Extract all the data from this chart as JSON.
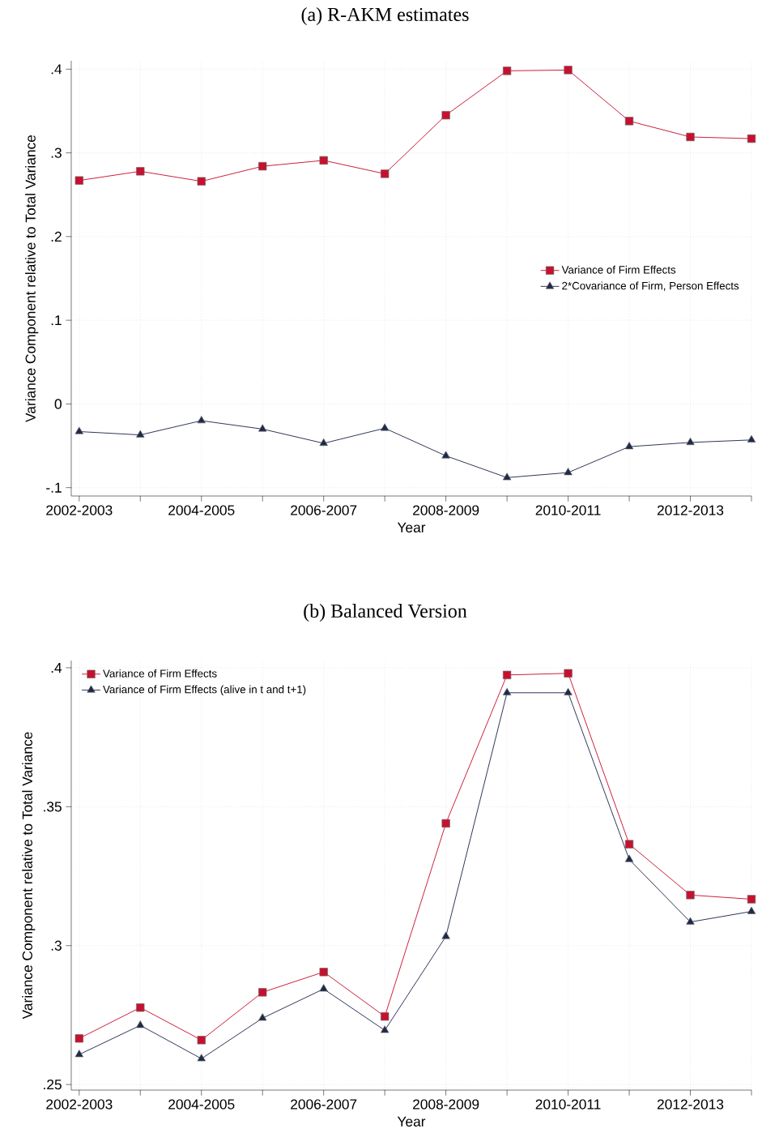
{
  "chart_data": [
    {
      "type": "line",
      "title": "(a) R-AKM estimates",
      "xlabel": "Year",
      "ylabel": "Variance Component relative to Total Variance",
      "categories": [
        "2002-2003",
        null,
        "2004-2005",
        null,
        "2006-2007",
        null,
        "2008-2009",
        null,
        "2010-2011",
        null,
        "2012-2013",
        null
      ],
      "ylim": [
        -0.11,
        0.41
      ],
      "yticks": [
        {
          "value": -0.1,
          "label": "-.1"
        },
        0,
        {
          "value": 0.1,
          "label": ".1"
        },
        {
          "value": 0.2,
          "label": ".2"
        },
        {
          "value": 0.3,
          "label": ".3"
        },
        {
          "value": 0.4,
          "label": ".4"
        }
      ],
      "grid": true,
      "legend": "right",
      "series": [
        {
          "name": "Variance of Firm Effects",
          "color": "#c8102e",
          "marker": "square",
          "values": [
            0.267,
            0.278,
            0.266,
            0.284,
            0.291,
            0.275,
            0.345,
            0.398,
            0.399,
            0.338,
            0.319,
            0.317
          ]
        },
        {
          "name": "2*Covariance of Firm, Person Effects",
          "color": "#1f2a4a",
          "marker": "triangle",
          "values": [
            -0.033,
            -0.037,
            -0.02,
            -0.03,
            -0.047,
            -0.029,
            -0.062,
            -0.088,
            -0.082,
            -0.051,
            -0.046,
            -0.043
          ]
        }
      ]
    },
    {
      "type": "line",
      "title": "(b) Balanced Version",
      "xlabel": "Year",
      "ylabel": "Variance Component relative to Total Variance",
      "categories": [
        "2002-2003",
        null,
        "2004-2005",
        null,
        "2006-2007",
        null,
        "2008-2009",
        null,
        "2010-2011",
        null,
        "2012-2013",
        null
      ],
      "ylim": [
        0.248,
        0.4026
      ],
      "yticks": [
        {
          "value": 0.25,
          "label": ".25"
        },
        {
          "value": 0.3,
          "label": ".3"
        },
        {
          "value": 0.35,
          "label": ".35"
        },
        {
          "value": 0.4,
          "label": ".4"
        }
      ],
      "grid": true,
      "legend": "top left",
      "series": [
        {
          "name": "Variance of Firm Effects",
          "color": "#c8102e",
          "marker": "square",
          "values": [
            0.2666,
            0.2777,
            0.266,
            0.2832,
            0.2905,
            0.2745,
            0.344,
            0.3974,
            0.398,
            0.3365,
            0.3182,
            0.3167
          ]
        },
        {
          "name": "Variance of Firm Effects (alive in t and t+1)",
          "color": "#1f2a4a",
          "marker": "triangle",
          "values": [
            0.2608,
            0.2713,
            0.2593,
            0.2739,
            0.2844,
            0.2695,
            0.3033,
            0.391,
            0.391,
            0.331,
            0.3085,
            0.3123
          ]
        }
      ]
    }
  ]
}
